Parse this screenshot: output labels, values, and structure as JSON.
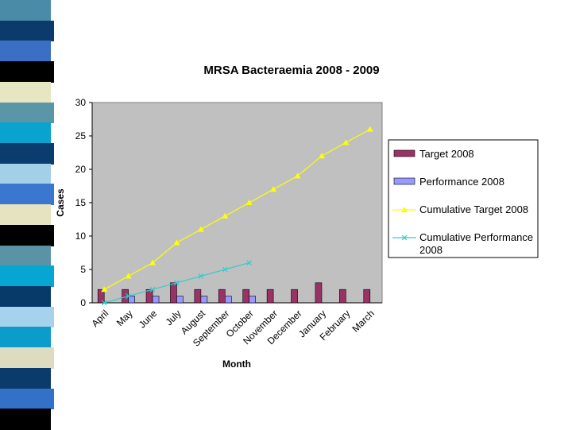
{
  "chart_data": {
    "type": "bar",
    "title": "MRSA Bacteraemia 2008 - 2009",
    "xlabel": "Month",
    "ylabel": "Cases",
    "ylim": [
      0,
      30
    ],
    "yticks": [
      0,
      5,
      10,
      15,
      20,
      25,
      30
    ],
    "grid": false,
    "legend_position": "right",
    "categories": [
      "April",
      "May",
      "June",
      "July",
      "August",
      "September",
      "October",
      "November",
      "December",
      "January",
      "February",
      "March"
    ],
    "series": [
      {
        "name": "Target 2008",
        "kind": "bar",
        "color": "#993366",
        "values": [
          2,
          2,
          2,
          3,
          2,
          2,
          2,
          2,
          2,
          3,
          2,
          2
        ]
      },
      {
        "name": "Performance 2008",
        "kind": "bar",
        "color": "#9999ff",
        "values": [
          0,
          1,
          1,
          1,
          1,
          1,
          1,
          null,
          null,
          null,
          null,
          null
        ]
      },
      {
        "name": "Cumulative Target 2008",
        "kind": "line",
        "marker": "triangle",
        "color": "#ffff00",
        "values": [
          2,
          4,
          6,
          9,
          11,
          13,
          15,
          17,
          19,
          22,
          24,
          26
        ]
      },
      {
        "name": "Cumulative Performance 2008",
        "kind": "line",
        "marker": "x",
        "color": "#33cccc",
        "values": [
          0,
          1,
          2,
          3,
          4,
          5,
          6,
          null,
          null,
          null,
          null,
          null
        ]
      }
    ],
    "plot_background": "#c0c0c0"
  },
  "decoration": {
    "stripe_colors": [
      "#4a8ca8",
      "#0b3a6b",
      "#3b6fc4",
      "#000000",
      "#e7e6c3",
      "#5a96a6",
      "#0aa2cf",
      "#0a3d6e",
      "#a3cfe9",
      "#3a78d0",
      "#e5e3c0",
      "#000000",
      "#5a93a5",
      "#06a6d3",
      "#083a69",
      "#a6d2ee",
      "#0c9ccb",
      "#dedcc0",
      "#0b3b6b",
      "#3370c8",
      "#000000"
    ]
  }
}
